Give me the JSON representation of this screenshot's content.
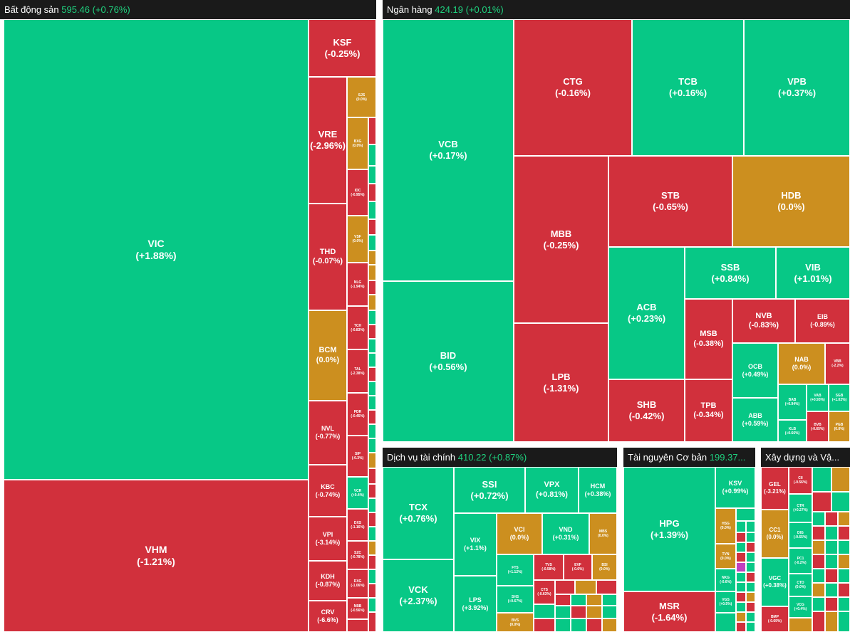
{
  "colors": {
    "up": "#07c886",
    "down": "#d1303c",
    "flat": "#cc8f1f",
    "header_bg": "#1a1a1a",
    "header_value": "#1fd17f"
  },
  "sectors": {
    "bds": {
      "name": "Bất động sản",
      "value": "595.46 (+0.76%)",
      "tiles": [
        {
          "sym": "VIC",
          "chg": "(+1.88%)"
        },
        {
          "sym": "VHM",
          "chg": "(-1.21%)"
        },
        {
          "sym": "KSF",
          "chg": "(-0.25%)"
        },
        {
          "sym": "VRE",
          "chg": "(-2.96%)"
        },
        {
          "sym": "THD",
          "chg": "(-0.07%)"
        },
        {
          "sym": "BCM",
          "chg": "(0.0%)"
        },
        {
          "sym": "NVL",
          "chg": "(-0.77%)"
        },
        {
          "sym": "KBC",
          "chg": "(-0.74%)"
        },
        {
          "sym": "VPI",
          "chg": "(-3.14%)"
        },
        {
          "sym": "KDH",
          "chg": "(-0.87%)"
        },
        {
          "sym": "CRV",
          "chg": "(-6.6%)"
        },
        {
          "sym": "SJS",
          "chg": "(0.0%)"
        },
        {
          "sym": "BXG",
          "chg": "(0.0%)"
        },
        {
          "sym": "IDC",
          "chg": "(-0.95%)"
        },
        {
          "sym": "VSF",
          "chg": "(0.0%)"
        },
        {
          "sym": "NLG",
          "chg": "(-1.94%)"
        },
        {
          "sym": "TCH",
          "chg": "(-0.83%)"
        },
        {
          "sym": "TAL",
          "chg": "(-2.38%)"
        },
        {
          "sym": "PDR",
          "chg": "(-0.45%)"
        },
        {
          "sym": "SIP",
          "chg": "(-0.3%)"
        },
        {
          "sym": "VCR",
          "chg": "(+0.4%)"
        },
        {
          "sym": "DXS",
          "chg": "(-1.16%)"
        },
        {
          "sym": "SZC",
          "chg": "(-0.78%)"
        },
        {
          "sym": "DXG",
          "chg": "(-1.06%)"
        },
        {
          "sym": "NBB",
          "chg": "(-0.56%)"
        }
      ]
    },
    "nganhang": {
      "name": "Ngân hàng",
      "value": "424.19 (+0.01%)",
      "tiles": [
        {
          "sym": "VCB",
          "chg": "(+0.17%)"
        },
        {
          "sym": "BID",
          "chg": "(+0.56%)"
        },
        {
          "sym": "CTG",
          "chg": "(-0.16%)"
        },
        {
          "sym": "TCB",
          "chg": "(+0.16%)"
        },
        {
          "sym": "VPB",
          "chg": "(+0.37%)"
        },
        {
          "sym": "MBB",
          "chg": "(-0.25%)"
        },
        {
          "sym": "LPB",
          "chg": "(-1.31%)"
        },
        {
          "sym": "STB",
          "chg": "(-0.65%)"
        },
        {
          "sym": "HDB",
          "chg": "(0.0%)"
        },
        {
          "sym": "ACB",
          "chg": "(+0.23%)"
        },
        {
          "sym": "SSB",
          "chg": "(+0.84%)"
        },
        {
          "sym": "VIB",
          "chg": "(+1.01%)"
        },
        {
          "sym": "MSB",
          "chg": "(-0.38%)"
        },
        {
          "sym": "NVB",
          "chg": "(-0.83%)"
        },
        {
          "sym": "EIB",
          "chg": "(-0.89%)"
        },
        {
          "sym": "SHB",
          "chg": "(-0.42%)"
        },
        {
          "sym": "TPB",
          "chg": "(-0.34%)"
        },
        {
          "sym": "OCB",
          "chg": "(+0.49%)"
        },
        {
          "sym": "NAB",
          "chg": "(0.0%)"
        },
        {
          "sym": "VBB",
          "chg": "(-2.2%)"
        },
        {
          "sym": "ABB",
          "chg": "(+0.59%)"
        },
        {
          "sym": "BAB",
          "chg": "(+0.94%)"
        },
        {
          "sym": "VAB",
          "chg": "(+0.93%)"
        },
        {
          "sym": "SGB",
          "chg": "(+1.02%)"
        },
        {
          "sym": "KLB",
          "chg": "(+0.66%)"
        },
        {
          "sym": "BVB",
          "chg": "(-0.65%)"
        },
        {
          "sym": "PGB",
          "chg": "(0.0%)"
        }
      ]
    },
    "dvtc": {
      "name": "Dịch vụ tài chính",
      "value": "410.22 (+0.87%)",
      "tiles": [
        {
          "sym": "TCX",
          "chg": "(+0.76%)"
        },
        {
          "sym": "VCK",
          "chg": "(+2.37%)"
        },
        {
          "sym": "SSI",
          "chg": "(+0.72%)"
        },
        {
          "sym": "VPX",
          "chg": "(+0.81%)"
        },
        {
          "sym": "HCM",
          "chg": "(+0.38%)"
        },
        {
          "sym": "VIX",
          "chg": "(+1.1%)"
        },
        {
          "sym": "VCI",
          "chg": "(0.0%)"
        },
        {
          "sym": "VND",
          "chg": "(+0.31%)"
        },
        {
          "sym": "MBS",
          "chg": "(0.0%)"
        },
        {
          "sym": "LPS",
          "chg": "(+3.92%)"
        },
        {
          "sym": "FTS",
          "chg": "(+1.12%)"
        },
        {
          "sym": "TVS",
          "chg": "(-0.58%)"
        },
        {
          "sym": "EVF",
          "chg": "(-0.6%)"
        },
        {
          "sym": "BSI",
          "chg": "(0.0%)"
        },
        {
          "sym": "SHS",
          "chg": "(+0.67%)"
        },
        {
          "sym": "CTS",
          "chg": "(-0.63%)"
        },
        {
          "sym": "BVS",
          "chg": "(0.0%)"
        }
      ]
    },
    "tncb": {
      "name": "Tài nguyên Cơ bản",
      "value": "199.37...",
      "tiles": [
        {
          "sym": "HPG",
          "chg": "(+1.39%)"
        },
        {
          "sym": "MSR",
          "chg": "(-1.64%)"
        },
        {
          "sym": "KSV",
          "chg": "(+0.99%)"
        },
        {
          "sym": "HSG",
          "chg": "(0.0%)"
        },
        {
          "sym": "TVN",
          "chg": "(0.0%)"
        },
        {
          "sym": "NKG",
          "chg": "(-0.6%)"
        },
        {
          "sym": "VGS",
          "chg": "(+0.5%)"
        }
      ]
    },
    "xd": {
      "name": "Xây dựng và Vậ...",
      "tiles": [
        {
          "sym": "GEL",
          "chg": "(-3.21%)"
        },
        {
          "sym": "CC1",
          "chg": "(0.0%)"
        },
        {
          "sym": "VGC",
          "chg": "(+0.38%)"
        },
        {
          "sym": "BMP",
          "chg": "(-0.69%)"
        },
        {
          "sym": "CII",
          "chg": "(-0.56%)"
        },
        {
          "sym": "CTR",
          "chg": "(+0.27%)"
        },
        {
          "sym": "DIG",
          "chg": "(-0.65%)"
        },
        {
          "sym": "PC1",
          "chg": "(-0.2%)"
        },
        {
          "sym": "CTD",
          "chg": "(0.0%)"
        },
        {
          "sym": "VCG",
          "chg": "(+0.4%)"
        }
      ]
    }
  }
}
